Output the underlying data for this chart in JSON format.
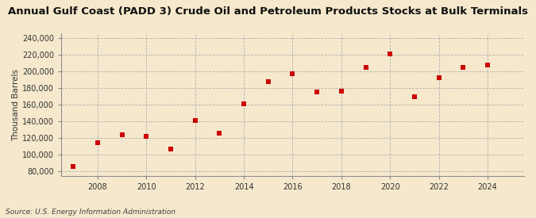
{
  "title": "Annual Gulf Coast (PADD 3) Crude Oil and Petroleum Products Stocks at Bulk Terminals",
  "ylabel": "Thousand Barrels",
  "source": "Source: U.S. Energy Information Administration",
  "background_color": "#f5e8cc",
  "plot_bg_color": "#f5e8cc",
  "marker_color": "#cc0000",
  "marker_size": 18,
  "years": [
    2007,
    2008,
    2009,
    2010,
    2011,
    2012,
    2013,
    2014,
    2015,
    2016,
    2017,
    2018,
    2019,
    2020,
    2021,
    2022,
    2023,
    2024
  ],
  "values": [
    86000,
    115000,
    124000,
    122000,
    107000,
    141000,
    126000,
    161000,
    188000,
    197000,
    175000,
    176000,
    205000,
    221000,
    170000,
    192000,
    205000,
    208000
  ],
  "ylim": [
    75000,
    245000
  ],
  "yticks": [
    80000,
    100000,
    120000,
    140000,
    160000,
    180000,
    200000,
    220000,
    240000
  ],
  "xticks": [
    2008,
    2010,
    2012,
    2014,
    2016,
    2018,
    2020,
    2022,
    2024
  ],
  "xlim": [
    2006.5,
    2025.5
  ],
  "title_fontsize": 9.5,
  "label_fontsize": 7.5,
  "tick_fontsize": 7,
  "source_fontsize": 6.5
}
